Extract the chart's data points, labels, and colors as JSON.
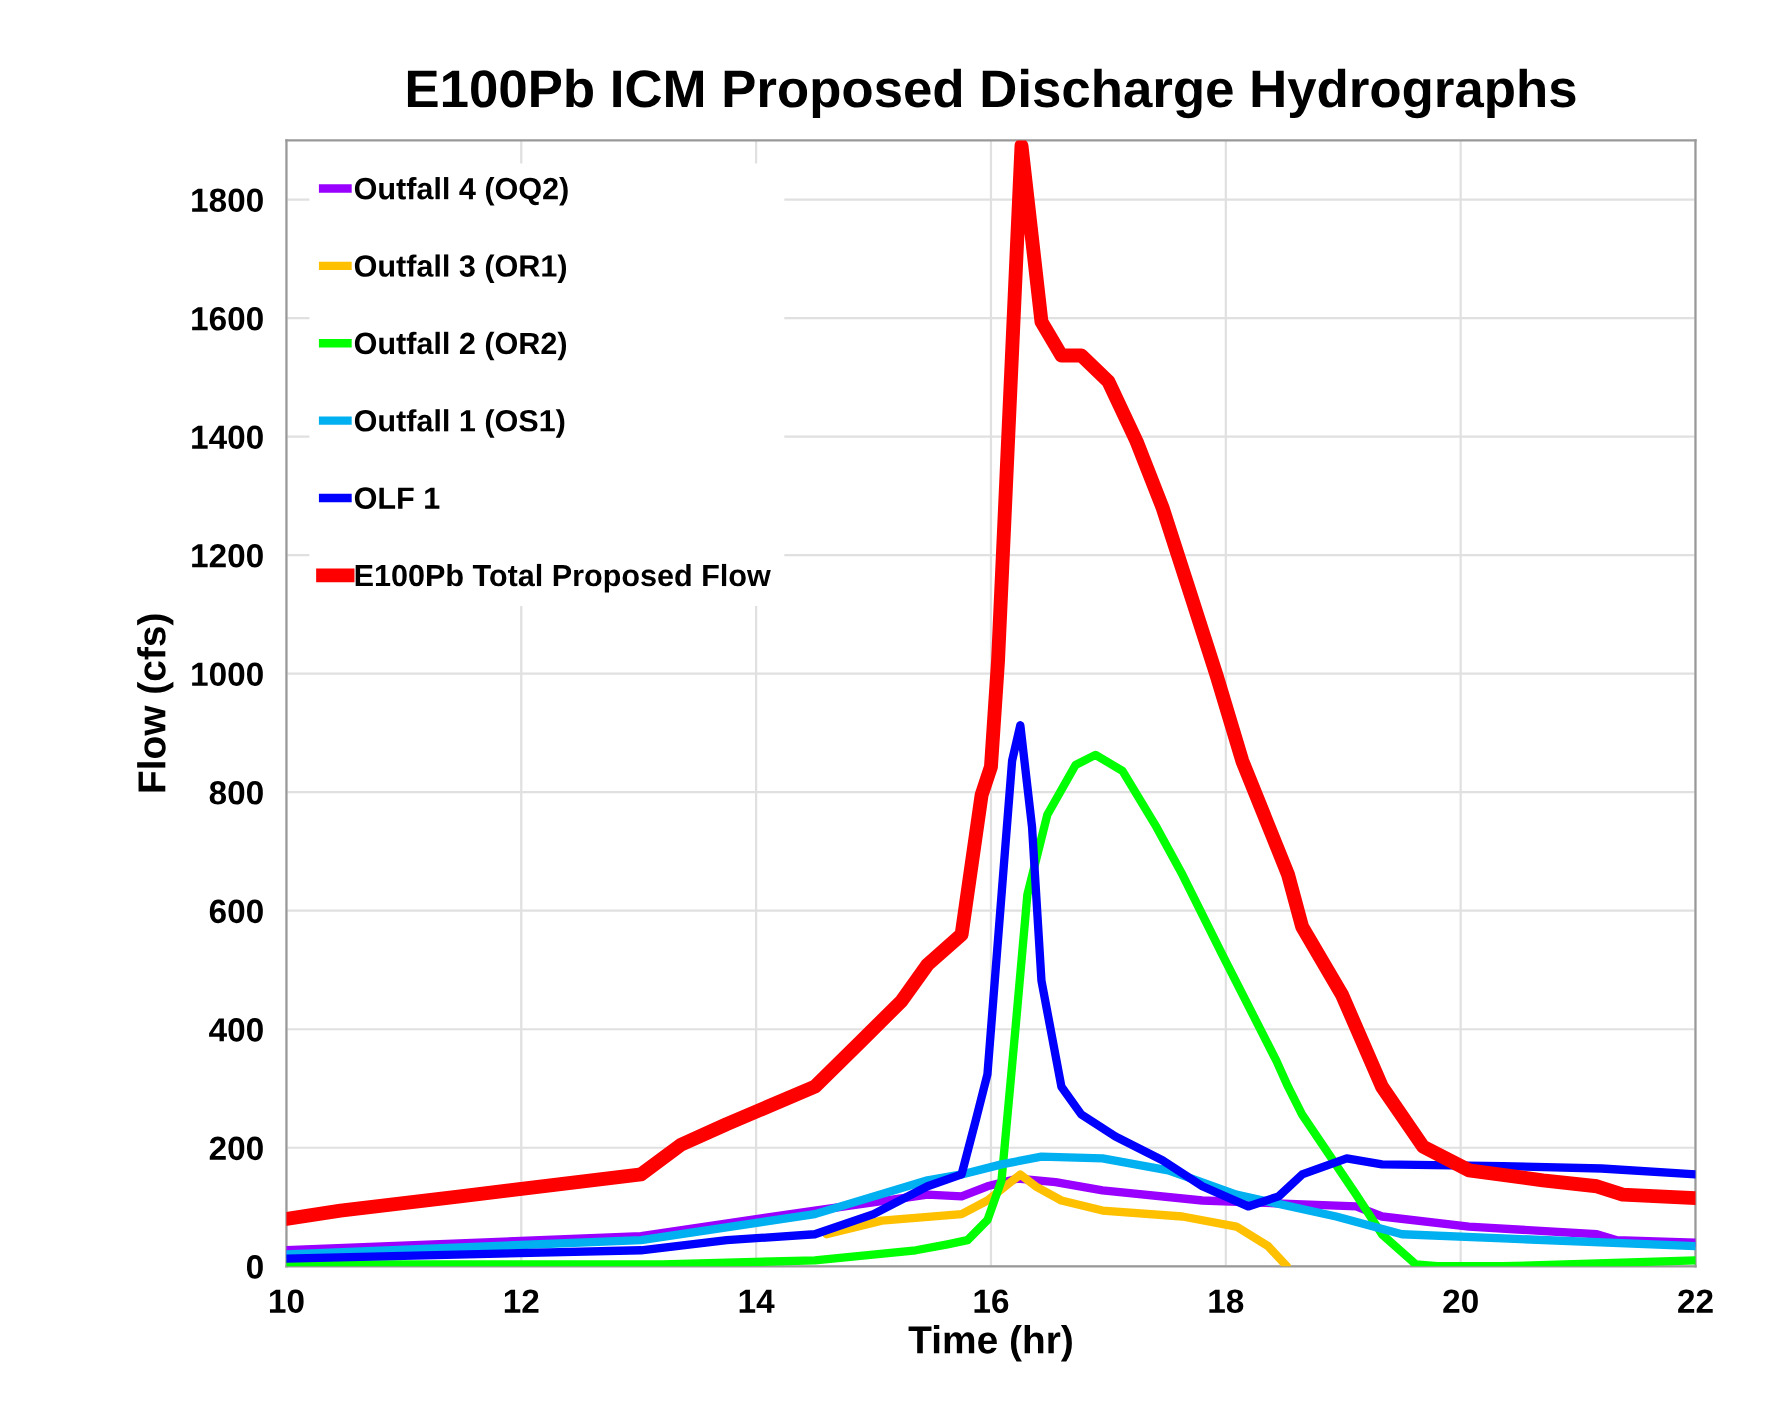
{
  "chart_data": {
    "type": "line",
    "title": "E100Pb ICM Proposed Discharge Hydrographs",
    "xlabel": "Time (hr)",
    "ylabel": "Flow (cfs)",
    "xlim": [
      10,
      22
    ],
    "xticks": [
      10,
      12,
      14,
      16,
      18,
      20,
      22
    ],
    "ylim": [
      0,
      1900
    ],
    "yticks": [
      0,
      200,
      400,
      600,
      800,
      1000,
      1200,
      1400,
      1600,
      1800
    ],
    "grid": true,
    "legend": "top left",
    "marker": "none",
    "line_style": "solid",
    "series": [
      {
        "name": "Outfall 4 (OQ2)",
        "color": "#9900ff",
        "x": [
          10,
          13.02,
          14.5,
          15.46,
          15.75,
          15.97,
          16.23,
          16.55,
          16.95,
          17.8,
          19.11,
          19.33,
          20.07,
          21.16,
          21.33,
          22
        ],
        "values": [
          27,
          51,
          94,
          121,
          118,
          135,
          148,
          142,
          128,
          111,
          101,
          84,
          67,
          54,
          44,
          40
        ]
      },
      {
        "name": "Outfall 3 (OR1)",
        "color": "#ffc000",
        "x": [
          14.6,
          15.07,
          15.75,
          15.97,
          16.25,
          16.38,
          16.6,
          16.95,
          17.63,
          18.09,
          18.36,
          18.52
        ],
        "values": [
          54,
          77,
          88,
          111,
          155,
          135,
          111,
          94,
          84,
          67,
          34,
          0
        ]
      },
      {
        "name": "Outfall 2 (OR2)",
        "color": "#00ff00",
        "x": [
          10,
          13.2,
          14.5,
          15.36,
          15.63,
          15.8,
          15.97,
          16.09,
          16.21,
          16.31,
          16.48,
          16.72,
          16.89,
          17.12,
          17.41,
          17.63,
          17.97,
          18.43,
          18.53,
          18.65,
          19.11,
          19.33,
          19.62,
          19.8,
          20.36,
          22
        ],
        "values": [
          3,
          3,
          10,
          27,
          37,
          44,
          78,
          145,
          404,
          627,
          762,
          846,
          863,
          836,
          741,
          661,
          526,
          347,
          303,
          256,
          121,
          54,
          3,
          0,
          0,
          10
        ]
      },
      {
        "name": "Outfall 1 (OS1)",
        "color": "#00b0f0",
        "x": [
          10,
          13.02,
          14.5,
          15.46,
          15.75,
          16.09,
          16.43,
          16.95,
          17.51,
          18.09,
          18.94,
          19.5,
          20.36,
          22
        ],
        "values": [
          20,
          44,
          88,
          145,
          155,
          172,
          185,
          182,
          162,
          121,
          84,
          54,
          47,
          34
        ]
      },
      {
        "name": "OLF 1",
        "color": "#0000ff",
        "x": [
          10,
          13.02,
          13.75,
          14.5,
          15.0,
          15.46,
          15.75,
          15.87,
          15.97,
          16.09,
          16.18,
          16.25,
          16.35,
          16.43,
          16.6,
          16.77,
          17.06,
          17.46,
          17.8,
          18.19,
          18.45,
          18.65,
          19.03,
          19.33,
          20.36,
          21.2,
          22
        ],
        "values": [
          13,
          27,
          44,
          54,
          88,
          135,
          155,
          246,
          324,
          627,
          853,
          913,
          741,
          482,
          303,
          256,
          219,
          179,
          135,
          101,
          118,
          155,
          182,
          172,
          169,
          165,
          155
        ]
      },
      {
        "name": "E100Pb Total Proposed Flow",
        "color": "#ff0000",
        "x": [
          10,
          10.46,
          11.48,
          13.02,
          13.36,
          13.75,
          14.5,
          14.9,
          15.24,
          15.46,
          15.75,
          15.92,
          16.0,
          16.06,
          16.26,
          16.43,
          16.6,
          16.77,
          17.0,
          17.24,
          17.46,
          17.68,
          17.92,
          18.14,
          18.53,
          18.65,
          18.99,
          19.33,
          19.68,
          20.07,
          20.7,
          21.16,
          21.38,
          22
        ],
        "values": [
          80,
          94,
          118,
          155,
          205,
          240,
          303,
          381,
          448,
          509,
          560,
          795,
          843,
          1021,
          1891,
          1594,
          1537,
          1537,
          1493,
          1392,
          1281,
          1146,
          998,
          853,
          661,
          573,
          458,
          303,
          202,
          162,
          145,
          135,
          121,
          115
        ]
      }
    ]
  }
}
